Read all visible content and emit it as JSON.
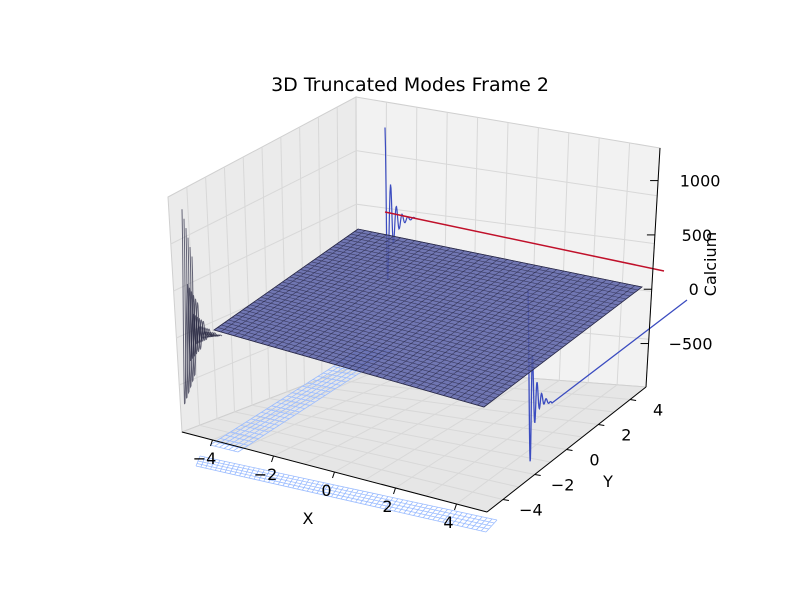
{
  "chart_data": {
    "type": "surface3d",
    "title": "3D Truncated Modes Frame 2",
    "xlabel": "X",
    "ylabel": "Y",
    "zlabel": "Calcium",
    "x_ticks": [
      "−4",
      "−2",
      "0",
      "2",
      "4"
    ],
    "y_ticks": [
      "−4",
      "−2",
      "0",
      "2",
      "4"
    ],
    "z_ticks": [
      "−500",
      "0",
      "500",
      "1000"
    ],
    "xlim": [
      -5,
      5
    ],
    "ylim": [
      -5,
      5
    ],
    "zlim": [
      -900,
      1300
    ],
    "grid": true,
    "colors": {
      "surface": "#5a62a8",
      "wire": "#2a2a4a",
      "projection_x_wall": "#2b2b45",
      "projection_y_wall": "#3b4cc0",
      "projection_floor": "#9bbcff",
      "red_line": "#c0102a"
    },
    "surface_level_z": 0,
    "ridge_peak_z": 1150,
    "ridge_trough_z": -700
  }
}
